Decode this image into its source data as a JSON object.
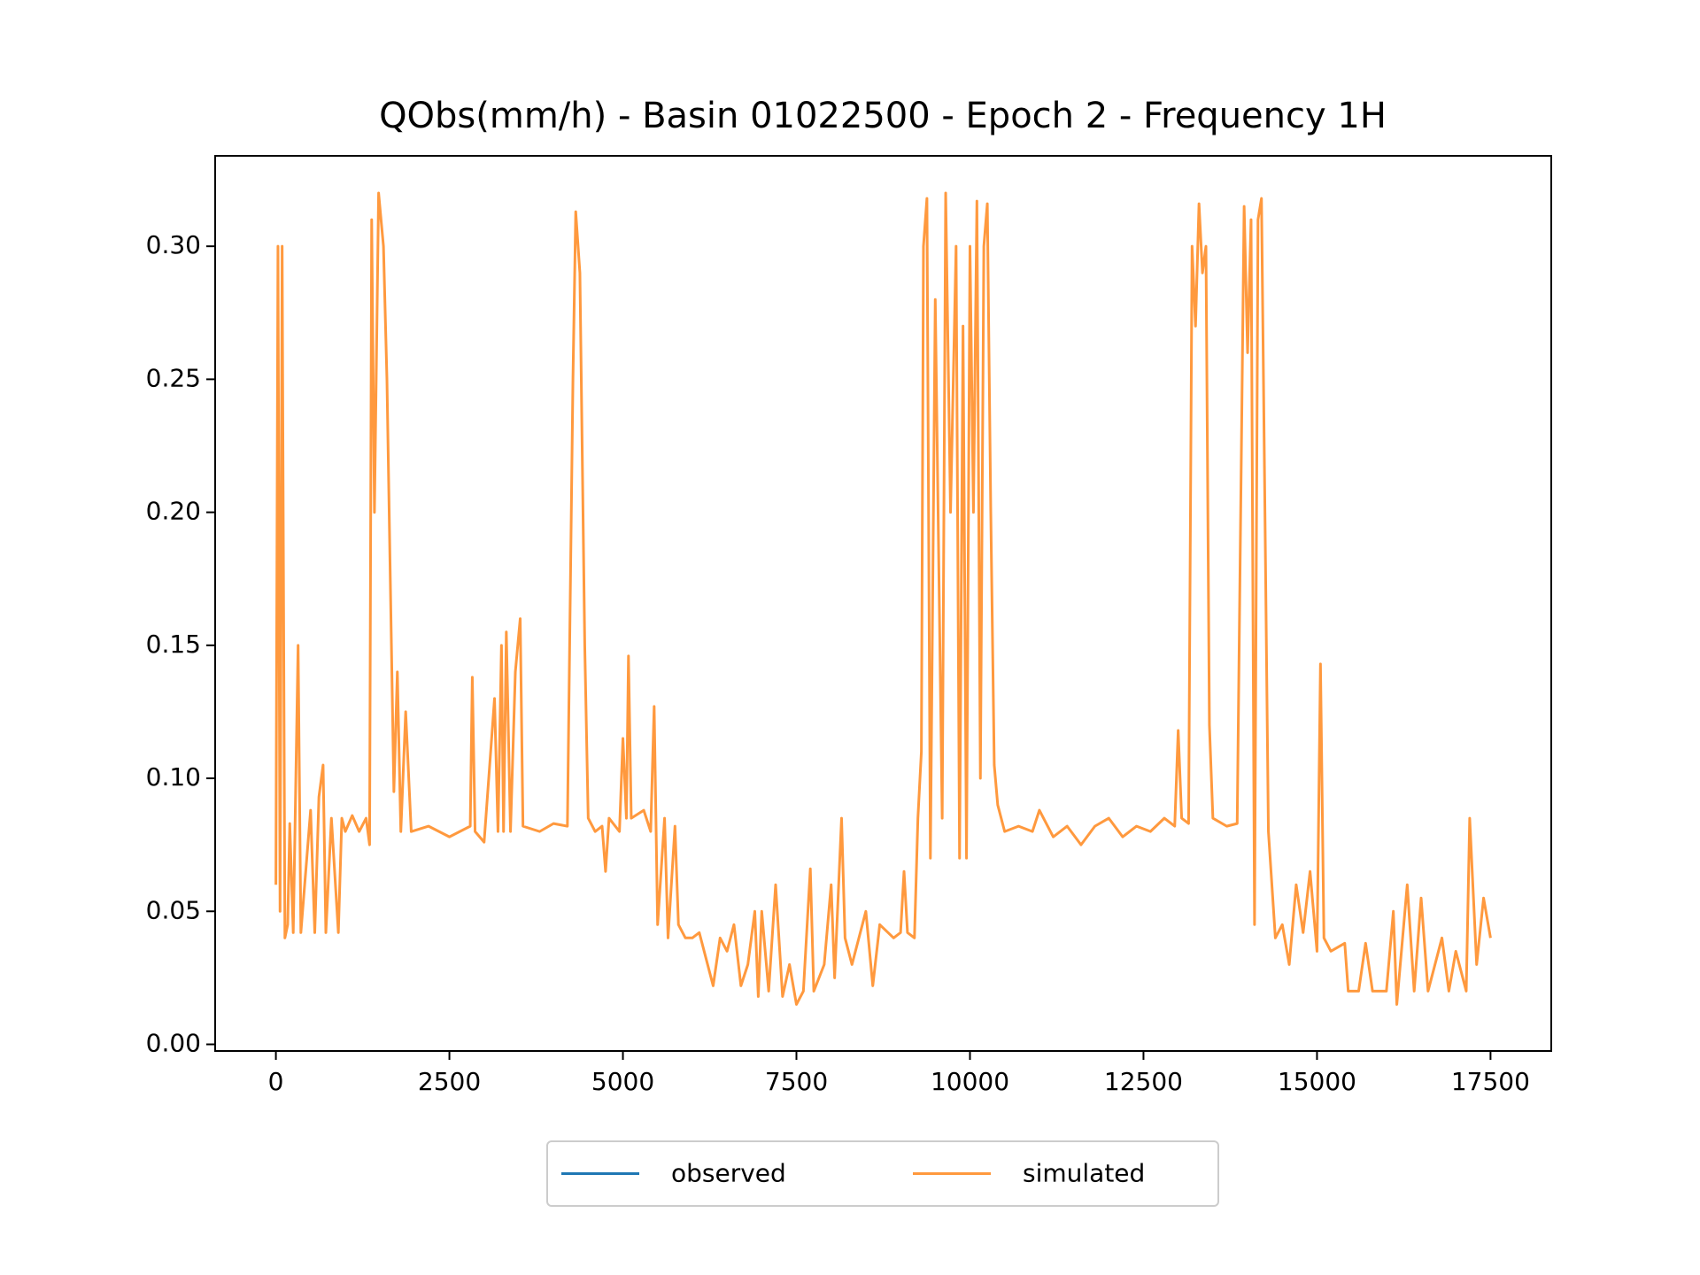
{
  "chart_data": {
    "type": "line",
    "title": "QObs(mm/h) - Basin 01022500 - Epoch 2 - Frequency 1H",
    "x": [
      0,
      30,
      60,
      90,
      130,
      170,
      200,
      250,
      320,
      360,
      500,
      560,
      620,
      680,
      720,
      800,
      900,
      950,
      1000,
      1100,
      1200,
      1300,
      1350,
      1380,
      1420,
      1480,
      1550,
      1600,
      1700,
      1750,
      1800,
      1870,
      1950,
      2200,
      2500,
      2800,
      2830,
      2870,
      3000,
      3150,
      3200,
      3250,
      3280,
      3320,
      3380,
      3450,
      3520,
      3560,
      3800,
      4000,
      4200,
      4280,
      4320,
      4380,
      4450,
      4500,
      4600,
      4700,
      4750,
      4800,
      4950,
      5000,
      5050,
      5080,
      5120,
      5300,
      5400,
      5450,
      5500,
      5600,
      5650,
      5750,
      5800,
      5900,
      6000,
      6100,
      6300,
      6400,
      6500,
      6600,
      6700,
      6800,
      6900,
      6950,
      7000,
      7100,
      7200,
      7300,
      7400,
      7500,
      7600,
      7700,
      7750,
      7900,
      8000,
      8050,
      8150,
      8200,
      8300,
      8500,
      8600,
      8700,
      8900,
      9000,
      9050,
      9100,
      9200,
      9250,
      9300,
      9330,
      9380,
      9430,
      9500,
      9600,
      9650,
      9720,
      9800,
      9850,
      9900,
      9950,
      10000,
      10050,
      10100,
      10150,
      10200,
      10250,
      10300,
      10350,
      10400,
      10500,
      10700,
      10900,
      11000,
      11200,
      11400,
      11600,
      11800,
      12000,
      12200,
      12400,
      12600,
      12800,
      12950,
      13000,
      13050,
      13150,
      13200,
      13250,
      13300,
      13350,
      13400,
      13450,
      13500,
      13700,
      13850,
      13950,
      14000,
      14050,
      14100,
      14150,
      14200,
      14250,
      14300,
      14400,
      14500,
      14600,
      14700,
      14800,
      14900,
      15000,
      15050,
      15100,
      15200,
      15400,
      15450,
      15600,
      15700,
      15800,
      16000,
      16100,
      16150,
      16300,
      16400,
      16500,
      16600,
      16800,
      16900,
      17000,
      17150,
      17200,
      17300,
      17400,
      17500
    ],
    "series": [
      {
        "name": "observed",
        "color": "#1f77b4",
        "values": [
          null,
          null,
          null,
          null,
          null,
          null,
          null,
          null,
          null,
          null,
          null,
          null,
          null,
          null,
          null,
          null,
          null,
          null,
          null,
          null,
          null,
          null,
          null,
          null,
          null,
          null,
          null,
          null,
          null,
          null,
          null,
          null,
          null,
          null,
          null,
          null,
          null,
          null,
          null,
          null,
          null,
          null,
          null,
          null,
          null,
          null,
          null,
          null,
          null,
          null,
          null,
          null,
          null,
          null,
          null,
          null,
          null,
          null,
          null,
          null,
          null,
          null,
          null,
          null,
          null,
          null,
          null,
          null,
          null,
          null,
          null,
          null,
          null,
          null,
          null,
          null,
          null,
          null,
          null,
          null,
          null,
          null,
          null,
          null,
          null,
          null,
          null,
          null,
          null,
          null,
          null,
          null,
          null,
          null,
          null,
          null,
          null,
          null,
          null,
          null,
          null,
          null,
          null,
          null,
          null,
          null,
          null,
          null,
          null,
          null,
          null,
          null,
          null,
          null,
          null,
          null,
          null,
          null,
          null,
          null,
          null,
          null,
          null,
          null,
          null,
          null,
          null,
          null,
          null,
          null,
          null,
          null,
          null,
          null,
          null,
          null,
          null,
          null,
          null,
          null,
          null,
          null,
          null,
          null,
          null,
          null,
          null,
          null,
          null,
          null,
          null,
          null,
          null,
          null,
          null,
          null,
          null,
          null,
          null,
          null,
          null,
          null,
          null,
          null,
          null,
          null,
          null,
          null,
          null,
          null,
          null,
          null,
          null,
          null,
          null,
          null,
          null,
          null,
          null,
          null,
          null,
          null,
          null,
          null,
          null,
          null,
          null,
          null,
          null,
          null,
          null,
          null,
          null
        ]
      },
      {
        "name": "simulated",
        "color": "#ff7f0e",
        "values": [
          0.06,
          0.3,
          0.05,
          0.3,
          0.04,
          0.045,
          0.083,
          0.042,
          0.15,
          0.042,
          0.088,
          0.042,
          0.093,
          0.105,
          0.042,
          0.085,
          0.042,
          0.085,
          0.08,
          0.086,
          0.08,
          0.085,
          0.075,
          0.31,
          0.2,
          0.32,
          0.3,
          0.25,
          0.095,
          0.14,
          0.08,
          0.125,
          0.08,
          0.082,
          0.078,
          0.082,
          0.138,
          0.08,
          0.076,
          0.13,
          0.08,
          0.15,
          0.08,
          0.155,
          0.08,
          0.14,
          0.16,
          0.082,
          0.08,
          0.083,
          0.082,
          0.25,
          0.313,
          0.29,
          0.15,
          0.085,
          0.08,
          0.082,
          0.065,
          0.085,
          0.08,
          0.115,
          0.085,
          0.146,
          0.085,
          0.088,
          0.08,
          0.127,
          0.045,
          0.085,
          0.04,
          0.082,
          0.045,
          0.04,
          0.04,
          0.042,
          0.022,
          0.04,
          0.035,
          0.045,
          0.022,
          0.03,
          0.05,
          0.018,
          0.05,
          0.02,
          0.06,
          0.018,
          0.03,
          0.015,
          0.02,
          0.066,
          0.02,
          0.03,
          0.06,
          0.025,
          0.085,
          0.04,
          0.03,
          0.05,
          0.022,
          0.045,
          0.04,
          0.042,
          0.065,
          0.042,
          0.04,
          0.085,
          0.11,
          0.3,
          0.318,
          0.07,
          0.28,
          0.085,
          0.32,
          0.2,
          0.3,
          0.07,
          0.27,
          0.07,
          0.3,
          0.2,
          0.317,
          0.1,
          0.3,
          0.316,
          0.2,
          0.105,
          0.09,
          0.08,
          0.082,
          0.08,
          0.088,
          0.078,
          0.082,
          0.075,
          0.082,
          0.085,
          0.078,
          0.082,
          0.08,
          0.085,
          0.082,
          0.118,
          0.085,
          0.083,
          0.3,
          0.27,
          0.316,
          0.29,
          0.3,
          0.12,
          0.085,
          0.082,
          0.083,
          0.315,
          0.26,
          0.31,
          0.045,
          0.31,
          0.318,
          0.2,
          0.08,
          0.04,
          0.045,
          0.03,
          0.06,
          0.042,
          0.065,
          0.035,
          0.143,
          0.04,
          0.035,
          0.038,
          0.02,
          0.02,
          0.038,
          0.02,
          0.02,
          0.05,
          0.015,
          0.06,
          0.02,
          0.055,
          0.02,
          0.04,
          0.02,
          0.035,
          0.02,
          0.085,
          0.03,
          0.055,
          0.04
        ]
      }
    ],
    "xlim": [
      -875,
      18375
    ],
    "ylim": [
      -0.0025,
      0.334
    ],
    "xticks": [
      0,
      2500,
      5000,
      7500,
      10000,
      12500,
      15000,
      17500
    ],
    "yticks": [
      {
        "value": 0,
        "label": "0.00"
      },
      {
        "value": 0.05,
        "label": "0.05"
      },
      {
        "value": 0.1,
        "label": "0.10"
      },
      {
        "value": 0.15,
        "label": "0.15"
      },
      {
        "value": 0.2,
        "label": "0.20"
      },
      {
        "value": 0.25,
        "label": "0.25"
      },
      {
        "value": 0.3,
        "label": "0.30"
      }
    ],
    "grid": false,
    "legend": "below"
  }
}
